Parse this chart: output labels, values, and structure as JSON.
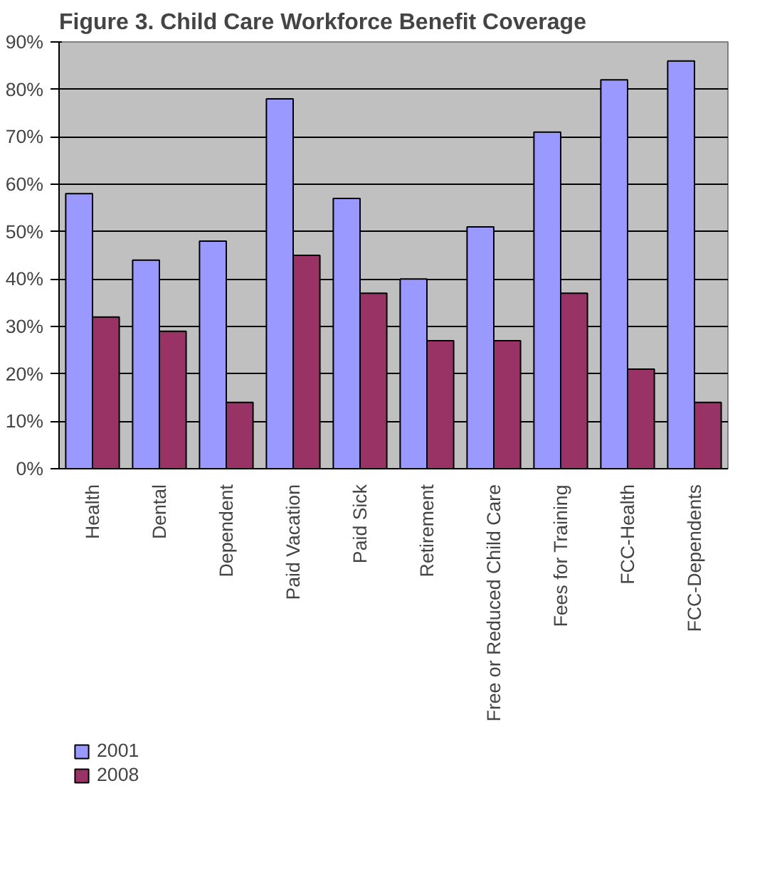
{
  "chart_data": {
    "type": "bar",
    "title": "Figure 3. Child Care Workforce Benefit Coverage",
    "categories": [
      "Health",
      "Dental",
      "Dependent",
      "Paid Vacation",
      "Paid Sick",
      "Retirement",
      "Free or Reduced Child Care",
      "Fees for Training",
      "FCC-Health",
      "FCC-Dependents"
    ],
    "series": [
      {
        "name": "2001",
        "color": "#9999ff",
        "values": [
          58,
          44,
          48,
          78,
          57,
          40,
          51,
          71,
          82,
          86
        ]
      },
      {
        "name": "2008",
        "color": "#993366",
        "values": [
          32,
          29,
          14,
          45,
          37,
          27,
          27,
          37,
          21,
          14
        ]
      }
    ],
    "ylim": [
      0,
      90
    ],
    "yticks": [
      {
        "value": 0,
        "label": "0%"
      },
      {
        "value": 10,
        "label": "10%"
      },
      {
        "value": 20,
        "label": "20%"
      },
      {
        "value": 30,
        "label": "30%"
      },
      {
        "value": 40,
        "label": "40%"
      },
      {
        "value": 50,
        "label": "50%"
      },
      {
        "value": 60,
        "label": "60%"
      },
      {
        "value": 70,
        "label": "70%"
      },
      {
        "value": 80,
        "label": "80%"
      },
      {
        "value": 90,
        "label": "90%"
      }
    ],
    "grid": "y",
    "legend": "bottom left"
  }
}
